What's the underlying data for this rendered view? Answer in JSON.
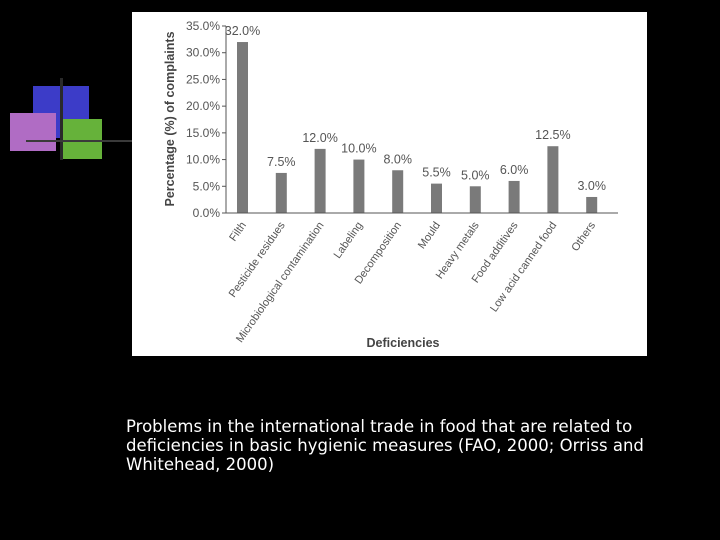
{
  "caption": "Problems in the international trade in food that are related to deficiencies in basic hygienic measures (FAO, 2000; Orriss and Whitehead, 2000)",
  "colors": {
    "background": "#000000",
    "panel": "#ffffff",
    "bar": "#7a7a7a",
    "accent_blue": "#3c3cc8",
    "accent_green": "#66b23a",
    "accent_pink": "#b06cc4"
  },
  "chart_data": {
    "type": "bar",
    "title": "",
    "xlabel": "Deficiencies",
    "ylabel": "Percentage (%) of complaints",
    "ylim": [
      0,
      35
    ],
    "yticks": [
      "0.0%",
      "5.0%",
      "10.0%",
      "15.0%",
      "20.0%",
      "25.0%",
      "30.0%",
      "35.0%"
    ],
    "grid": false,
    "categories": [
      "Filth",
      "Pesticide residues",
      "Microbiological contamination",
      "Labeling",
      "Decomposition",
      "Mould",
      "Heavy metals",
      "Food additives",
      "Low acid canned food",
      "Others"
    ],
    "values": [
      32.0,
      7.5,
      12.0,
      10.0,
      8.0,
      5.5,
      5.0,
      6.0,
      12.5,
      3.0
    ],
    "data_labels": [
      "32.0%",
      "7.5%",
      "12.0%",
      "10.0%",
      "8.0%",
      "5.5%",
      "5.0%",
      "6.0%",
      "12.5%",
      "3.0%"
    ]
  }
}
